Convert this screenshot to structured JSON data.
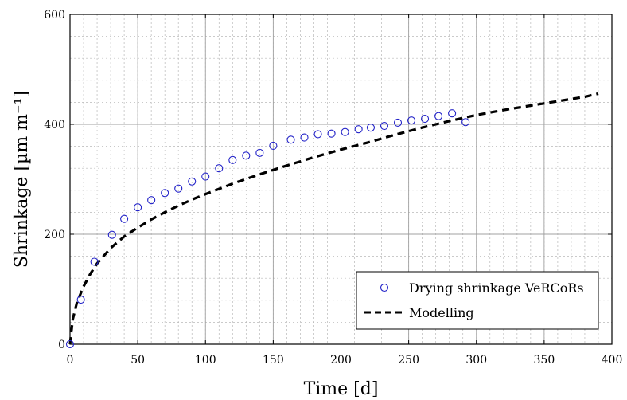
{
  "chart_data": {
    "type": "scatter",
    "xlabel": "Time [d]",
    "ylabel": "Shrinkage [µm m⁻¹]",
    "xlim": [
      0,
      400
    ],
    "ylim": [
      0,
      600
    ],
    "x_ticks": [
      0,
      50,
      100,
      150,
      200,
      250,
      300,
      350,
      400
    ],
    "y_ticks": [
      0,
      200,
      400,
      600
    ],
    "x_tick_labels": [
      "0",
      "50",
      "100",
      "150",
      "200",
      "250",
      "300",
      "350",
      "400"
    ],
    "y_tick_labels": [
      "0",
      "200",
      "400",
      "600"
    ],
    "grid": true,
    "minor_grid": true,
    "legend_position": "lower-right",
    "series": [
      {
        "name": "Drying shrinkage VeRCoRs",
        "kind": "markers",
        "marker": "circle",
        "color": "#2323c8",
        "x": [
          0,
          8,
          18,
          31,
          40,
          50,
          60,
          70,
          80,
          90,
          100,
          110,
          120,
          130,
          140,
          150,
          163,
          173,
          183,
          193,
          203,
          213,
          222,
          232,
          242,
          252,
          262,
          272,
          282,
          292
        ],
        "y": [
          0,
          81,
          150,
          199,
          228,
          249,
          262,
          275,
          283,
          296,
          305,
          320,
          335,
          343,
          348,
          361,
          372,
          376,
          382,
          383,
          386,
          391,
          394,
          397,
          403,
          407,
          410,
          415,
          420,
          404
        ]
      },
      {
        "name": "Modelling",
        "kind": "line",
        "style": "dashed",
        "color": "#000000",
        "x": [
          0,
          2,
          5,
          10,
          15,
          20,
          30,
          40,
          50,
          60,
          70,
          80,
          90,
          100,
          120,
          140,
          160,
          180,
          200,
          220,
          240,
          260,
          280,
          300,
          320,
          340,
          360,
          380,
          390
        ],
        "y": [
          0,
          45,
          75,
          105,
          128,
          147,
          175,
          196,
          212,
          227,
          240,
          252,
          263,
          273,
          292,
          309,
          325,
          340,
          354,
          367,
          381,
          394,
          406,
          417,
          426,
          434,
          442,
          450,
          456
        ]
      }
    ]
  }
}
